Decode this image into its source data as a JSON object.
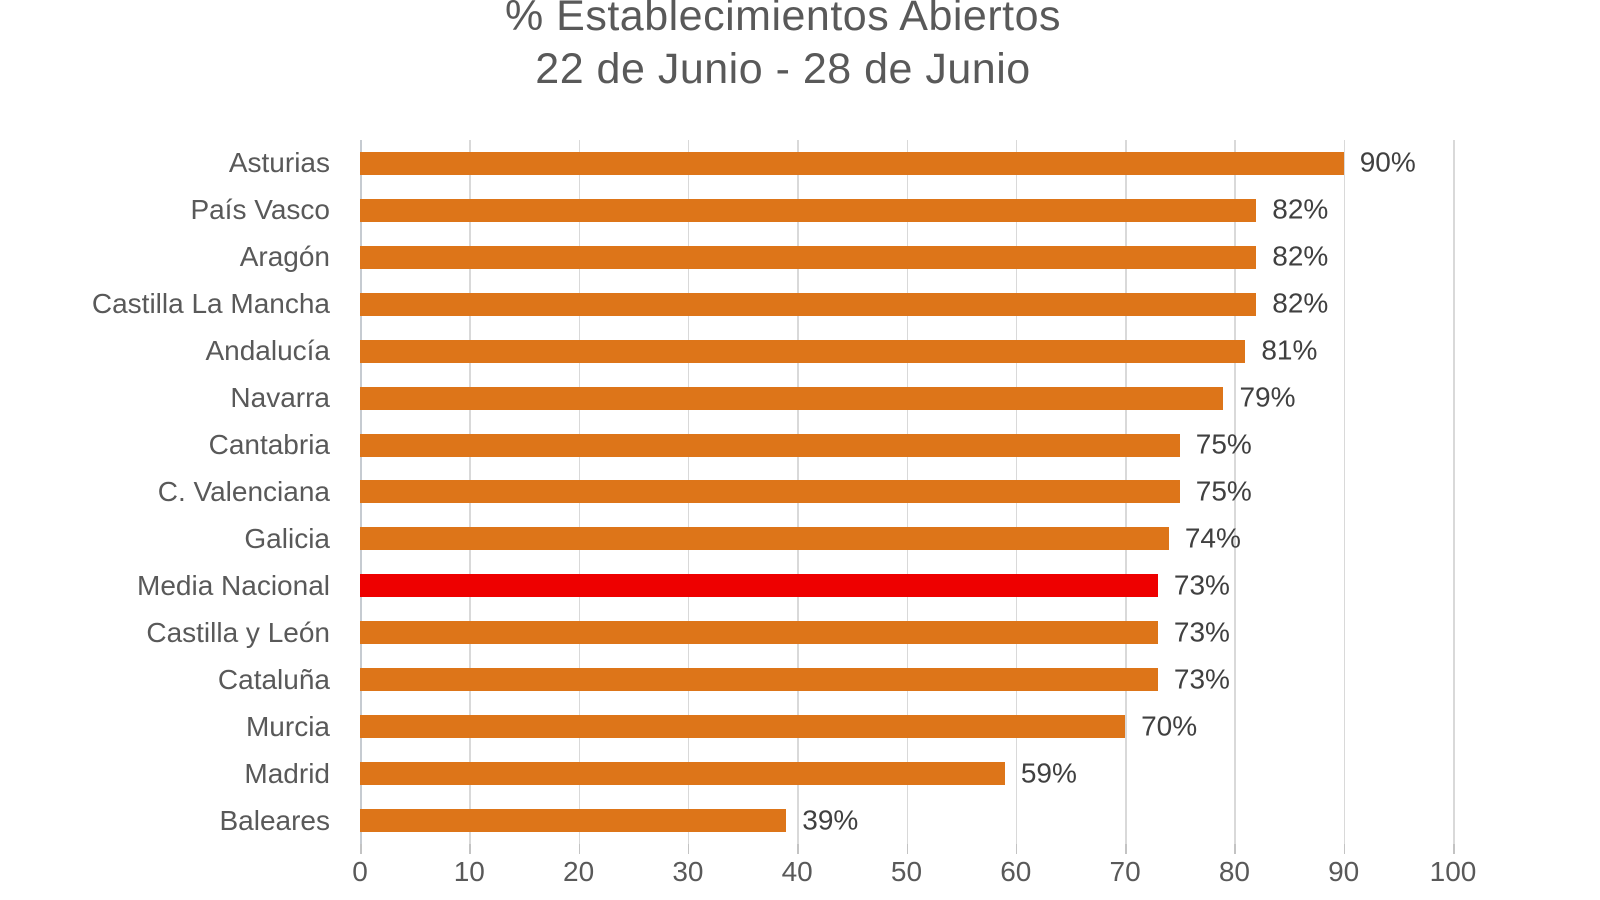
{
  "chart_data": {
    "type": "bar",
    "orientation": "horizontal",
    "title_line1": "% Establecimientos Abiertos",
    "title_line2": "22 de Junio - 28 de Junio",
    "categories": [
      "Asturias",
      "País Vasco",
      "Aragón",
      "Castilla La Mancha",
      "Andalucía",
      "Navarra",
      "Cantabria",
      "C. Valenciana",
      "Galicia",
      "Media Nacional",
      "Castilla y León",
      "Cataluña",
      "Murcia",
      "Madrid",
      "Baleares"
    ],
    "values": [
      90,
      82,
      82,
      82,
      81,
      79,
      75,
      75,
      74,
      73,
      73,
      73,
      70,
      59,
      39
    ],
    "value_labels": [
      "90%",
      "82%",
      "82%",
      "82%",
      "81%",
      "79%",
      "75%",
      "75%",
      "74%",
      "73%",
      "73%",
      "73%",
      "70%",
      "59%",
      "39%"
    ],
    "highlight_index": 9,
    "highlight_category": "Media Nacional",
    "bar_color": "#dd7519",
    "highlight_color": "#ee0000",
    "gridline_color": "#d9d9d9",
    "text_color": "#595959",
    "value_label_color": "#404040",
    "xlim": [
      0,
      100
    ],
    "x_ticks": [
      0,
      10,
      20,
      30,
      40,
      50,
      60,
      70,
      80,
      90,
      100
    ],
    "x_tick_labels": [
      "0",
      "10",
      "20",
      "30",
      "40",
      "50",
      "60",
      "70",
      "80",
      "90",
      "100"
    ],
    "grid": true,
    "legend": "none"
  }
}
